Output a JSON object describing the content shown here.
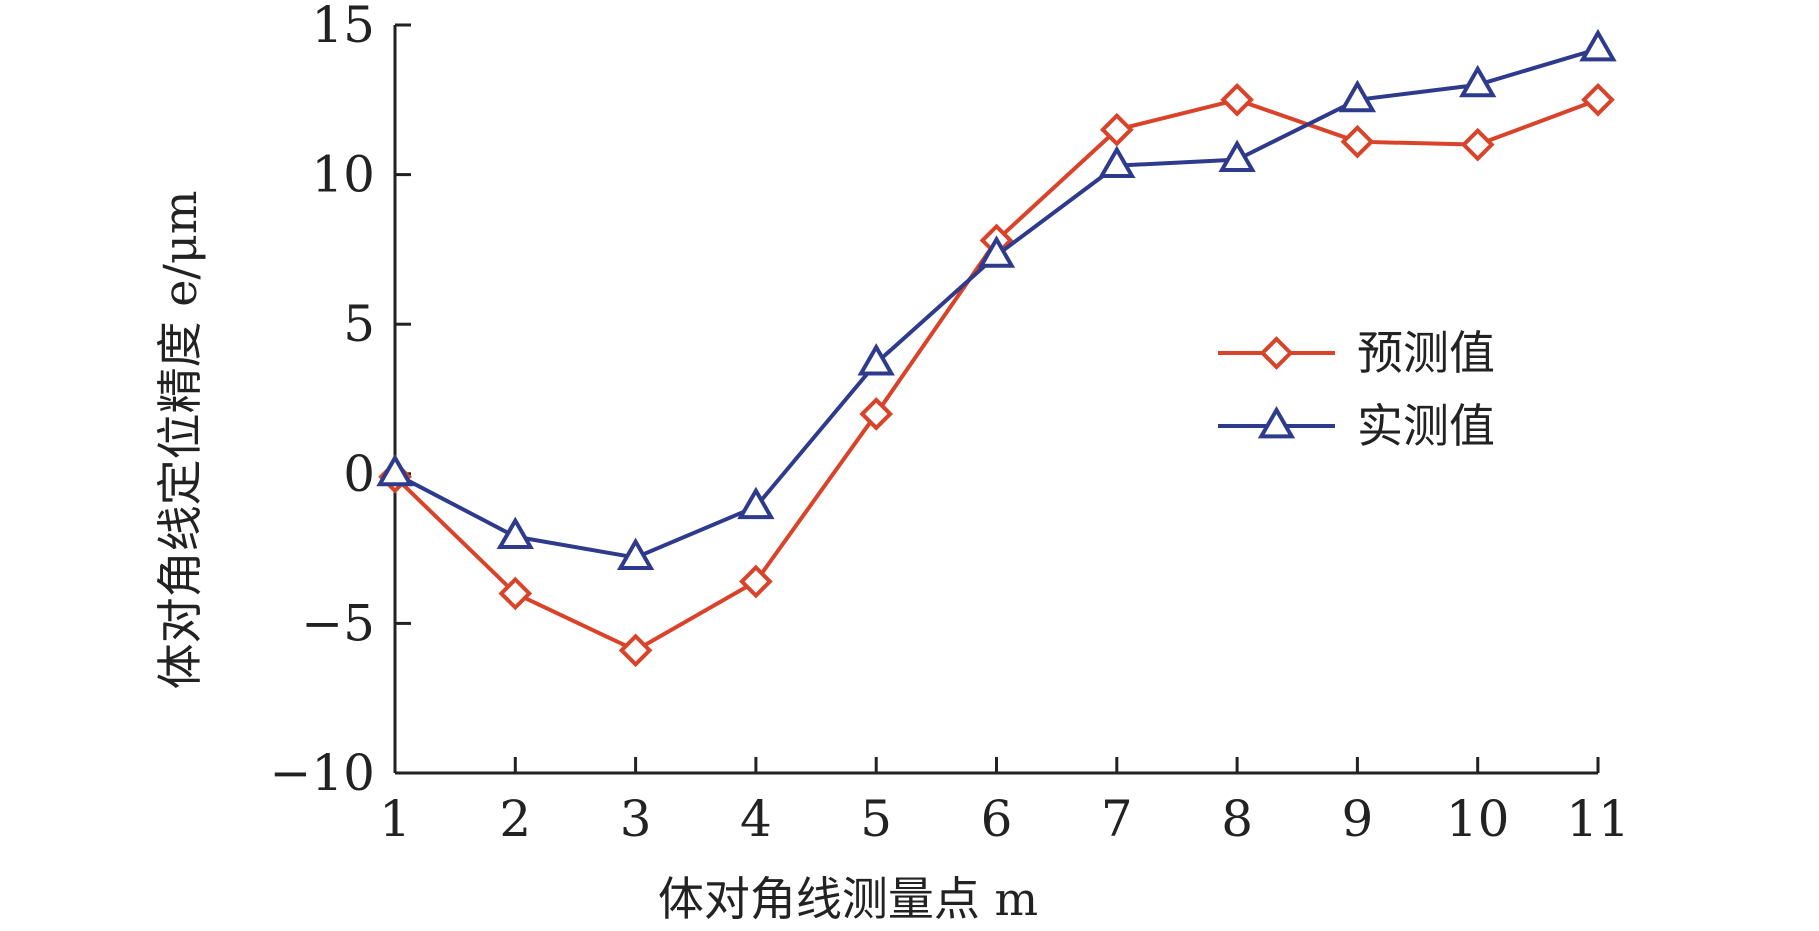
{
  "chart_data": {
    "type": "line",
    "xlabel": "体对角线测量点 m",
    "ylabel": "体对角线定位精度 e/μm",
    "x": [
      1,
      2,
      3,
      4,
      5,
      6,
      7,
      8,
      9,
      10,
      11
    ],
    "x_ticks": [
      "1",
      "2",
      "3",
      "4",
      "5",
      "6",
      "7",
      "8",
      "9",
      "10",
      "11"
    ],
    "ylim": [
      -10,
      15
    ],
    "y_ticks": [
      "−10",
      "−5",
      "0",
      "5",
      "10",
      "15"
    ],
    "grid": false,
    "legend_position": "center-right",
    "series": [
      {
        "name": "预测值",
        "marker": "diamond",
        "color": "#d9432a",
        "values": [
          -0.1,
          -4.0,
          -5.9,
          -3.6,
          2.0,
          7.8,
          11.5,
          12.5,
          11.1,
          11.0,
          12.5
        ]
      },
      {
        "name": "实测值",
        "marker": "triangle",
        "color": "#2e3a8c",
        "values": [
          0.0,
          -2.1,
          -2.8,
          -1.1,
          3.7,
          7.3,
          10.3,
          10.5,
          12.5,
          13.0,
          14.2
        ]
      }
    ]
  }
}
